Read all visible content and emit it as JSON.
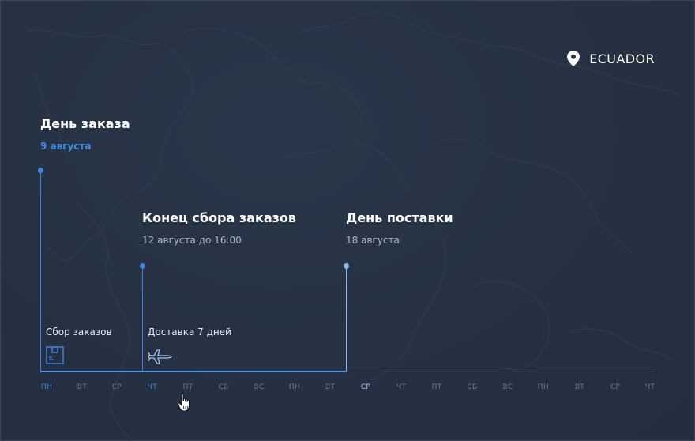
{
  "location": {
    "icon": "location-pin-icon",
    "country": "ECUADOR"
  },
  "events": {
    "order_day": {
      "title": "День заказа",
      "date": "9 августа"
    },
    "collection_end": {
      "title": "Конец сбора заказов",
      "date": "12 августа до 16:00"
    },
    "delivery_day": {
      "title": "День поставки",
      "date": "18 августа"
    }
  },
  "segments": {
    "collection": {
      "label": "Сбор заказов",
      "icon": "package-icon"
    },
    "delivery": {
      "label": "Доставка 7 дней",
      "icon": "airplane-icon"
    }
  },
  "days": [
    "ПН",
    "ВТ",
    "СР",
    "ЧТ",
    "ПТ",
    "СБ",
    "ВС",
    "ПН",
    "ВТ",
    "СР",
    "ЧТ",
    "ПТ",
    "СБ",
    "ВС",
    "ПН",
    "ВТ",
    "СР",
    "ЧТ"
  ],
  "colors": {
    "accent": "#3b82e0",
    "accent_light": "#86b8f0",
    "background": "#263243"
  }
}
